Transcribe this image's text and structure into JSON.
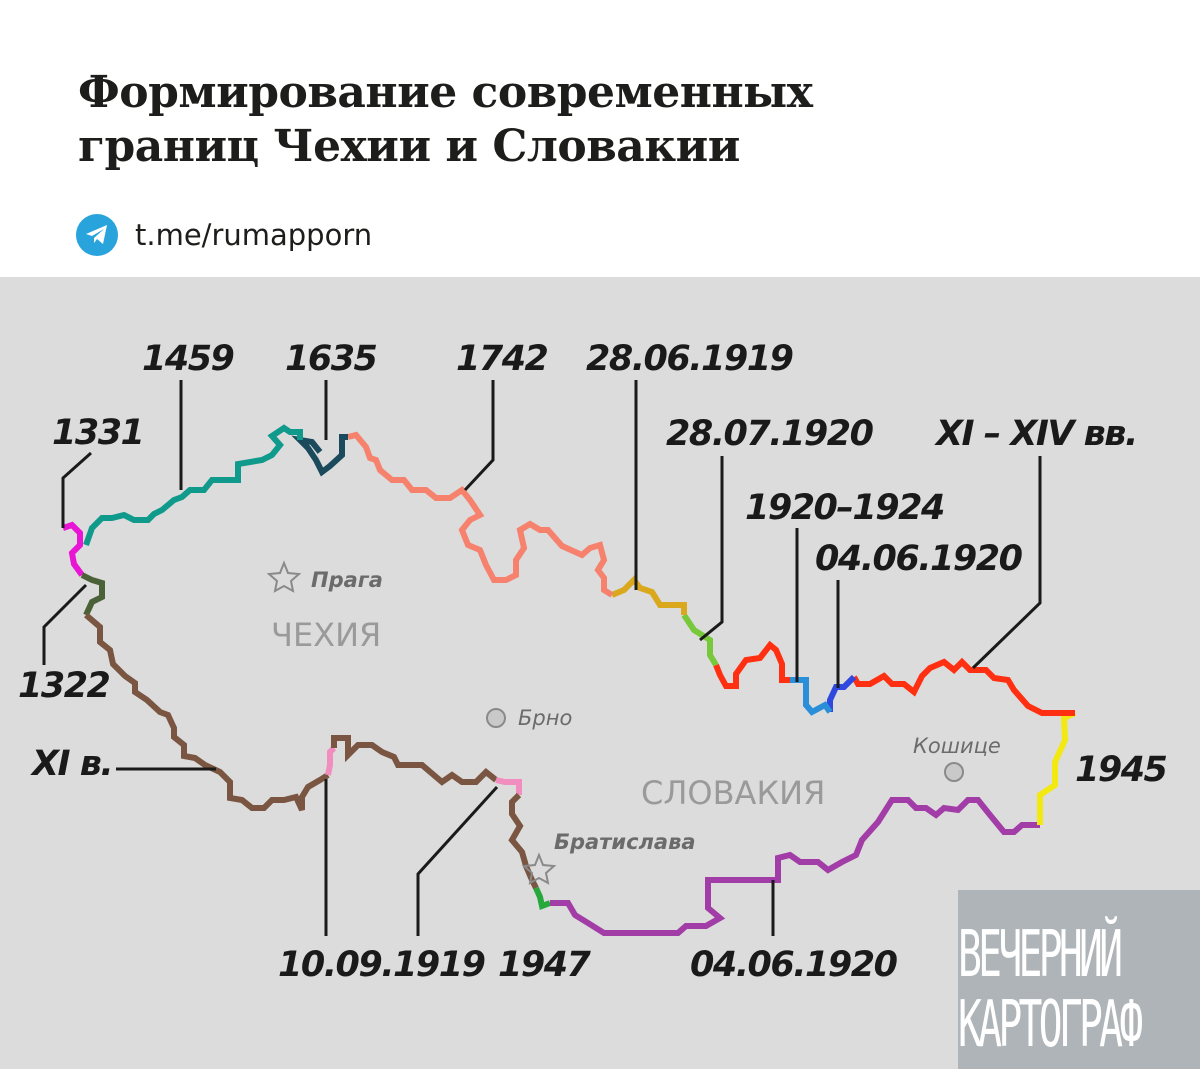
{
  "header": {
    "title_line1": "Формирование современных",
    "title_line2": "границ Чехии и Словакии",
    "telegram_link": "t.me/rumapporn",
    "telegram_color": "#29a3dc"
  },
  "map": {
    "background": "#dcdcdc",
    "cities": {
      "prague": "Прага",
      "brno": "Брно",
      "kosice": "Кошице",
      "bratislava": "Братислава"
    },
    "countries": {
      "czech": "ЧЕХИЯ",
      "slovakia": "СЛОВАКИЯ"
    },
    "border_segments": [
      {
        "label": "1331",
        "color": "#e815d4"
      },
      {
        "label": "1459",
        "color": "#109a8c"
      },
      {
        "label": "1635",
        "color": "#1a4a5c"
      },
      {
        "label": "1742",
        "color": "#f6826e"
      },
      {
        "label": "28.06.1919",
        "color": "#d9a81c"
      },
      {
        "label": "28.07.1920",
        "color": "#77c83a"
      },
      {
        "label": "1920–1924",
        "color": "#2a8fd8"
      },
      {
        "label": "04.06.1920",
        "color": "#2f48e0"
      },
      {
        "label": "XI – XIV вв.",
        "color": "#ff3011"
      },
      {
        "label": "1945",
        "color": "#f2e812"
      },
      {
        "label": "04.06.1920",
        "color": "#a23ca6"
      },
      {
        "label": "1947",
        "color": "#27a83d"
      },
      {
        "label": "10.09.1919",
        "color": "#f28dc0"
      },
      {
        "label": "XI в.",
        "color": "#7a5541"
      },
      {
        "label": "1322",
        "color": "#4b6238"
      }
    ]
  },
  "watermark": {
    "line1": "ВЕЧЕРНИЙ",
    "line2": "КАРТОГРАФ"
  }
}
